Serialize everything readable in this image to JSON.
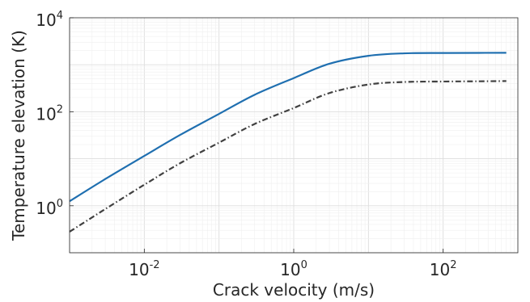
{
  "chart_data": {
    "type": "line",
    "title": "",
    "xlabel": "Crack velocity (m/s)",
    "ylabel": "Temperature elevation (K)",
    "xscale": "log",
    "yscale": "log",
    "xlim": [
      0.001,
      1000
    ],
    "ylim": [
      0.1,
      10000
    ],
    "grid": true,
    "minor_grid": true,
    "x_ticks": [
      {
        "base": "10",
        "exp": "-2",
        "value": 0.01
      },
      {
        "base": "10",
        "exp": "0",
        "value": 1
      },
      {
        "base": "10",
        "exp": "2",
        "value": 100
      }
    ],
    "y_ticks": [
      {
        "base": "10",
        "exp": "0",
        "value": 1
      },
      {
        "base": "10",
        "exp": "2",
        "value": 100
      },
      {
        "base": "10",
        "exp": "4",
        "value": 10000
      }
    ],
    "series": [
      {
        "style": "solid",
        "color": "#1f6fb0",
        "x": [
          0.001,
          0.003,
          0.01,
          0.03,
          0.1,
          0.3,
          1,
          3,
          10,
          30,
          100,
          300,
          700
        ],
        "y": [
          1.25,
          3.7,
          11.5,
          32,
          90,
          230,
          520,
          1050,
          1550,
          1750,
          1780,
          1790,
          1800
        ]
      },
      {
        "style": "dashdot",
        "color": "#404040",
        "x": [
          0.001,
          0.003,
          0.01,
          0.03,
          0.1,
          0.3,
          1,
          3,
          10,
          30,
          100,
          300,
          700
        ],
        "y": [
          0.28,
          0.85,
          2.8,
          8,
          22,
          55,
          120,
          250,
          380,
          430,
          440,
          445,
          450
        ]
      }
    ]
  }
}
